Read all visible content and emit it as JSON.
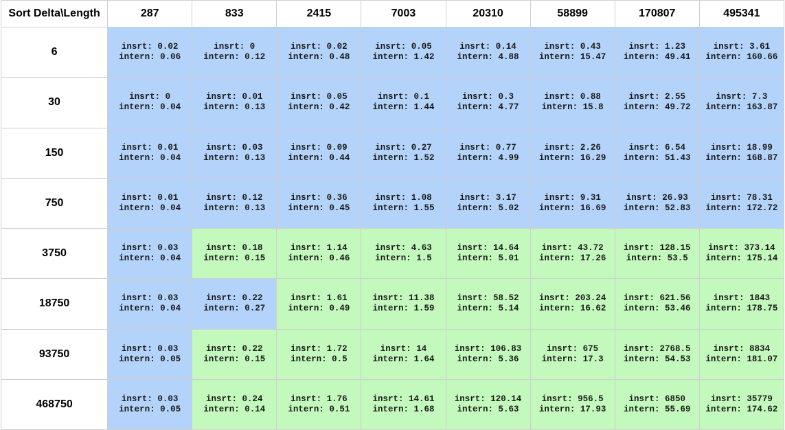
{
  "chart_data": {
    "type": "table",
    "corner_label": "Sort Delta\\Length",
    "columns": [
      "287",
      "833",
      "2415",
      "7003",
      "20310",
      "58899",
      "170807",
      "495341"
    ],
    "rows": [
      "6",
      "30",
      "150",
      "750",
      "3750",
      "18750",
      "93750",
      "468750"
    ],
    "insrt_label": "insrt: ",
    "intern_label": "intern: ",
    "colors": {
      "blue": "#b3d3fa",
      "green": "#c3f9bc"
    },
    "cells": [
      [
        {
          "insrt": "0.02",
          "intern": "0.06",
          "color": "blue"
        },
        {
          "insrt": "0",
          "intern": "0.12",
          "color": "blue"
        },
        {
          "insrt": "0.02",
          "intern": "0.48",
          "color": "blue"
        },
        {
          "insrt": "0.05",
          "intern": "1.42",
          "color": "blue"
        },
        {
          "insrt": "0.14",
          "intern": "4.88",
          "color": "blue"
        },
        {
          "insrt": "0.43",
          "intern": "15.47",
          "color": "blue"
        },
        {
          "insrt": "1.23",
          "intern": "49.41",
          "color": "blue"
        },
        {
          "insrt": "3.61",
          "intern": "160.66",
          "color": "blue"
        }
      ],
      [
        {
          "insrt": "0",
          "intern": "0.04",
          "color": "blue"
        },
        {
          "insrt": "0.01",
          "intern": "0.13",
          "color": "blue"
        },
        {
          "insrt": "0.05",
          "intern": "0.42",
          "color": "blue"
        },
        {
          "insrt": "0.1",
          "intern": "1.44",
          "color": "blue"
        },
        {
          "insrt": "0.3",
          "intern": "4.77",
          "color": "blue"
        },
        {
          "insrt": "0.88",
          "intern": "15.8",
          "color": "blue"
        },
        {
          "insrt": "2.55",
          "intern": "49.72",
          "color": "blue"
        },
        {
          "insrt": "7.3",
          "intern": "163.87",
          "color": "blue"
        }
      ],
      [
        {
          "insrt": "0.01",
          "intern": "0.04",
          "color": "blue"
        },
        {
          "insrt": "0.03",
          "intern": "0.13",
          "color": "blue"
        },
        {
          "insrt": "0.09",
          "intern": "0.44",
          "color": "blue"
        },
        {
          "insrt": "0.27",
          "intern": "1.52",
          "color": "blue"
        },
        {
          "insrt": "0.77",
          "intern": "4.99",
          "color": "blue"
        },
        {
          "insrt": "2.26",
          "intern": "16.29",
          "color": "blue"
        },
        {
          "insrt": "6.54",
          "intern": "51.43",
          "color": "blue"
        },
        {
          "insrt": "18.99",
          "intern": "168.87",
          "color": "blue"
        }
      ],
      [
        {
          "insrt": "0.01",
          "intern": "0.04",
          "color": "blue"
        },
        {
          "insrt": "0.12",
          "intern": "0.13",
          "color": "blue"
        },
        {
          "insrt": "0.36",
          "intern": "0.45",
          "color": "blue"
        },
        {
          "insrt": "1.08",
          "intern": "1.55",
          "color": "blue"
        },
        {
          "insrt": "3.17",
          "intern": "5.02",
          "color": "blue"
        },
        {
          "insrt": "9.31",
          "intern": "16.69",
          "color": "blue"
        },
        {
          "insrt": "26.93",
          "intern": "52.83",
          "color": "blue"
        },
        {
          "insrt": "78.31",
          "intern": "172.72",
          "color": "blue"
        }
      ],
      [
        {
          "insrt": "0.03",
          "intern": "0.04",
          "color": "blue"
        },
        {
          "insrt": "0.18",
          "intern": "0.15",
          "color": "green"
        },
        {
          "insrt": "1.14",
          "intern": "0.46",
          "color": "green"
        },
        {
          "insrt": "4.63",
          "intern": "1.5",
          "color": "green"
        },
        {
          "insrt": "14.64",
          "intern": "5.01",
          "color": "green"
        },
        {
          "insrt": "43.72",
          "intern": "17.26",
          "color": "green"
        },
        {
          "insrt": "128.15",
          "intern": "53.5",
          "color": "green"
        },
        {
          "insrt": "373.14",
          "intern": "175.14",
          "color": "green"
        }
      ],
      [
        {
          "insrt": "0.03",
          "intern": "0.04",
          "color": "blue"
        },
        {
          "insrt": "0.22",
          "intern": "0.27",
          "color": "blue"
        },
        {
          "insrt": "1.61",
          "intern": "0.49",
          "color": "green"
        },
        {
          "insrt": "11.38",
          "intern": "1.59",
          "color": "green"
        },
        {
          "insrt": "58.52",
          "intern": "5.14",
          "color": "green"
        },
        {
          "insrt": "203.24",
          "intern": "16.62",
          "color": "green"
        },
        {
          "insrt": "621.56",
          "intern": "53.46",
          "color": "green"
        },
        {
          "insrt": "1843",
          "intern": "178.75",
          "color": "green"
        }
      ],
      [
        {
          "insrt": "0.03",
          "intern": "0.05",
          "color": "blue"
        },
        {
          "insrt": "0.22",
          "intern": "0.15",
          "color": "green"
        },
        {
          "insrt": "1.72",
          "intern": "0.5",
          "color": "green"
        },
        {
          "insrt": "14",
          "intern": "1.64",
          "color": "green"
        },
        {
          "insrt": "106.83",
          "intern": "5.36",
          "color": "green"
        },
        {
          "insrt": "675",
          "intern": "17.3",
          "color": "green"
        },
        {
          "insrt": "2768.5",
          "intern": "54.53",
          "color": "green"
        },
        {
          "insrt": "8834",
          "intern": "181.07",
          "color": "green"
        }
      ],
      [
        {
          "insrt": "0.03",
          "intern": "0.05",
          "color": "blue"
        },
        {
          "insrt": "0.24",
          "intern": "0.14",
          "color": "green"
        },
        {
          "insrt": "1.76",
          "intern": "0.51",
          "color": "green"
        },
        {
          "insrt": "14.61",
          "intern": "1.68",
          "color": "green"
        },
        {
          "insrt": "120.14",
          "intern": "5.63",
          "color": "green"
        },
        {
          "insrt": "956.5",
          "intern": "17.93",
          "color": "green"
        },
        {
          "insrt": "6850",
          "intern": "55.69",
          "color": "green"
        },
        {
          "insrt": "35779",
          "intern": "174.62",
          "color": "green"
        }
      ]
    ]
  }
}
